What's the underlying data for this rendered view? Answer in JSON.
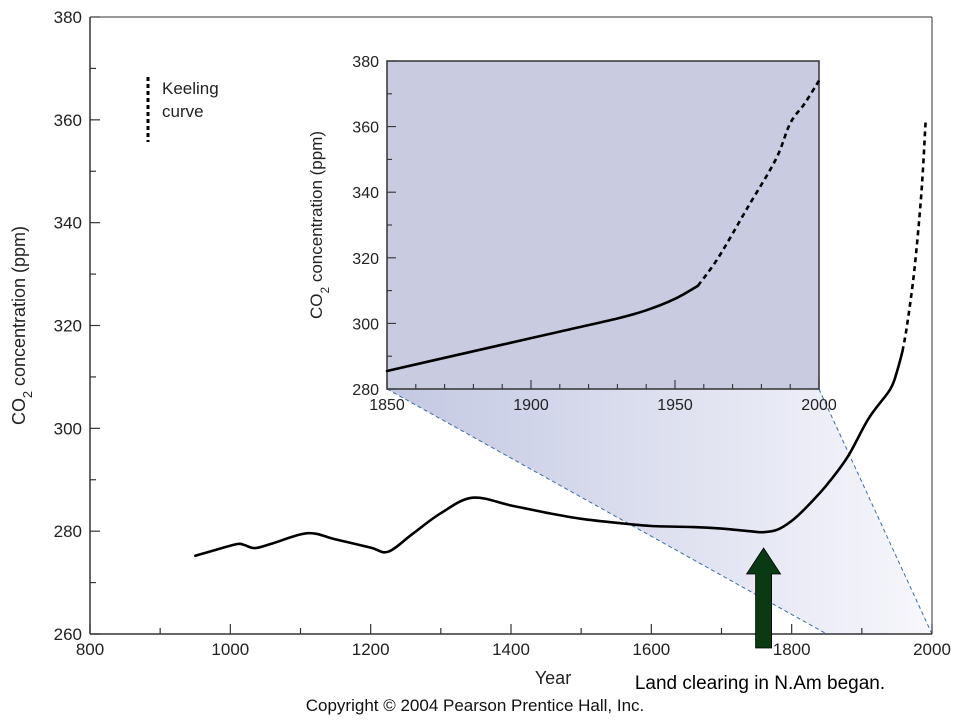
{
  "chart_data": [
    {
      "type": "line",
      "xlabel": "Year",
      "ylabel": "CO2 concentration (ppm)",
      "ylabel_parts": [
        "CO",
        "2",
        " concentration (ppm)"
      ],
      "xlim": [
        800,
        2000
      ],
      "ylim": [
        260,
        380
      ],
      "xticks": [
        800,
        1000,
        1200,
        1400,
        1600,
        1800,
        2000
      ],
      "yticks": [
        260,
        280,
        300,
        320,
        340,
        360,
        380
      ],
      "grid": false,
      "series": [
        {
          "name": "",
          "style": "solid",
          "x": [
            950,
            980,
            1010,
            1020,
            1035,
            1060,
            1110,
            1150,
            1200,
            1225,
            1260,
            1300,
            1345,
            1400,
            1450,
            1500,
            1560,
            1600,
            1660,
            1700,
            1740,
            1760,
            1780,
            1800,
            1820,
            1850,
            1880,
            1910,
            1940,
            1950,
            1958
          ],
          "y": [
            275.2,
            276.4,
            277.5,
            277.3,
            276.7,
            277.6,
            279.6,
            278.4,
            276.8,
            276.0,
            279.5,
            283.5,
            286.5,
            285.0,
            283.6,
            282.4,
            281.5,
            281.0,
            280.8,
            280.5,
            280.0,
            279.8,
            280.3,
            282.0,
            284.5,
            289.0,
            294.5,
            302.0,
            307.5,
            311.0,
            315.0
          ]
        },
        {
          "name": "Keeling curve",
          "style": "dashed",
          "x": [
            1958,
            1965,
            1975,
            1985,
            1991
          ],
          "y": [
            315.0,
            320.5,
            331.0,
            346.0,
            360.0
          ]
        }
      ],
      "legend": {
        "label_lines": [
          "Keeling",
          "curve"
        ],
        "placement": "top-left"
      },
      "annotation": {
        "text": "Land clearing in N.Am began.",
        "x": 1760,
        "arrow_color": "#0a3a12"
      },
      "zoom_range": [
        1850,
        2000
      ]
    },
    {
      "type": "line",
      "xlabel": "",
      "ylabel": "CO2 concentration (ppm)",
      "ylabel_parts": [
        "CO",
        "2",
        " concentration (ppm)"
      ],
      "xlim": [
        1850,
        2000
      ],
      "ylim": [
        280,
        380
      ],
      "xticks": [
        1850,
        1900,
        1950,
        2000
      ],
      "yticks": [
        280,
        300,
        320,
        340,
        360,
        380
      ],
      "grid": false,
      "background": "#c9cce0",
      "series": [
        {
          "name": "",
          "style": "solid",
          "x": [
            1850,
            1870,
            1890,
            1910,
            1930,
            1940,
            1950,
            1958
          ],
          "y": [
            285.5,
            289.5,
            293.5,
            297.5,
            301.5,
            304.0,
            307.5,
            311.5
          ]
        },
        {
          "name": "Keeling curve",
          "style": "dashed",
          "x": [
            1958,
            1965,
            1975,
            1985,
            1990,
            1995,
            2000
          ],
          "y": [
            311.5,
            320.0,
            335.0,
            350.0,
            361.0,
            367.0,
            374.0
          ]
        }
      ]
    }
  ],
  "footer": {
    "copyright": "Copyright © 2004 Pearson Prentice Hall, Inc."
  },
  "colors": {
    "line": "#000000",
    "axis": "#333333",
    "inset_bg": "#c9cce0",
    "zoom_fill": "#dcdff0",
    "zoom_lines": "#3a6ea5",
    "arrow": "#0a3a12"
  }
}
